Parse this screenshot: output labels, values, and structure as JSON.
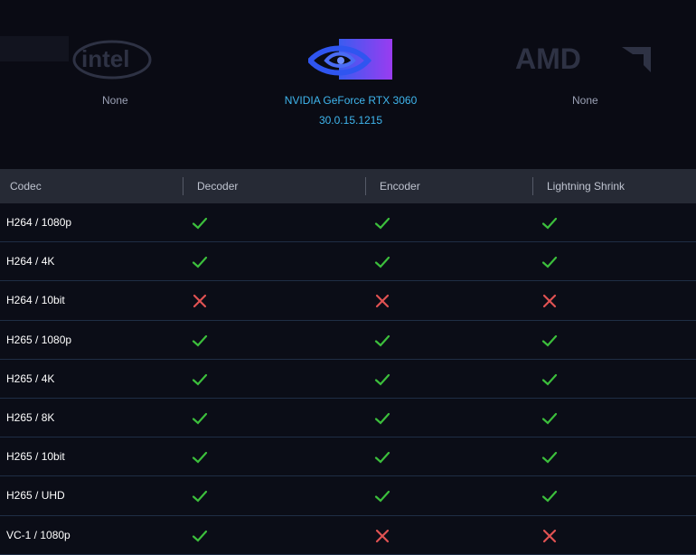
{
  "gpus": {
    "intel": {
      "status": "None"
    },
    "nvidia": {
      "name": "NVIDIA GeForce RTX 3060",
      "driver": "30.0.15.1215"
    },
    "amd": {
      "status": "None"
    }
  },
  "table": {
    "headers": [
      "Codec",
      "Decoder",
      "Encoder",
      "Lightning Shrink"
    ],
    "rows": [
      {
        "codec": "H264 / 1080p",
        "decoder": true,
        "encoder": true,
        "lightning_shrink": true
      },
      {
        "codec": "H264 / 4K",
        "decoder": true,
        "encoder": true,
        "lightning_shrink": true
      },
      {
        "codec": "H264 / 10bit",
        "decoder": false,
        "encoder": false,
        "lightning_shrink": false
      },
      {
        "codec": "H265 / 1080p",
        "decoder": true,
        "encoder": true,
        "lightning_shrink": true
      },
      {
        "codec": "H265 / 4K",
        "decoder": true,
        "encoder": true,
        "lightning_shrink": true
      },
      {
        "codec": "H265 / 8K",
        "decoder": true,
        "encoder": true,
        "lightning_shrink": true
      },
      {
        "codec": "H265 / 10bit",
        "decoder": true,
        "encoder": true,
        "lightning_shrink": true
      },
      {
        "codec": "H265 / UHD",
        "decoder": true,
        "encoder": true,
        "lightning_shrink": true
      },
      {
        "codec": "VC-1 / 1080p",
        "decoder": true,
        "encoder": false,
        "lightning_shrink": false
      }
    ]
  },
  "colors": {
    "check": "#3cbf3c",
    "cross": "#e05252",
    "nvidia_text": "#3fb6ee",
    "header_bg": "#262a35"
  }
}
